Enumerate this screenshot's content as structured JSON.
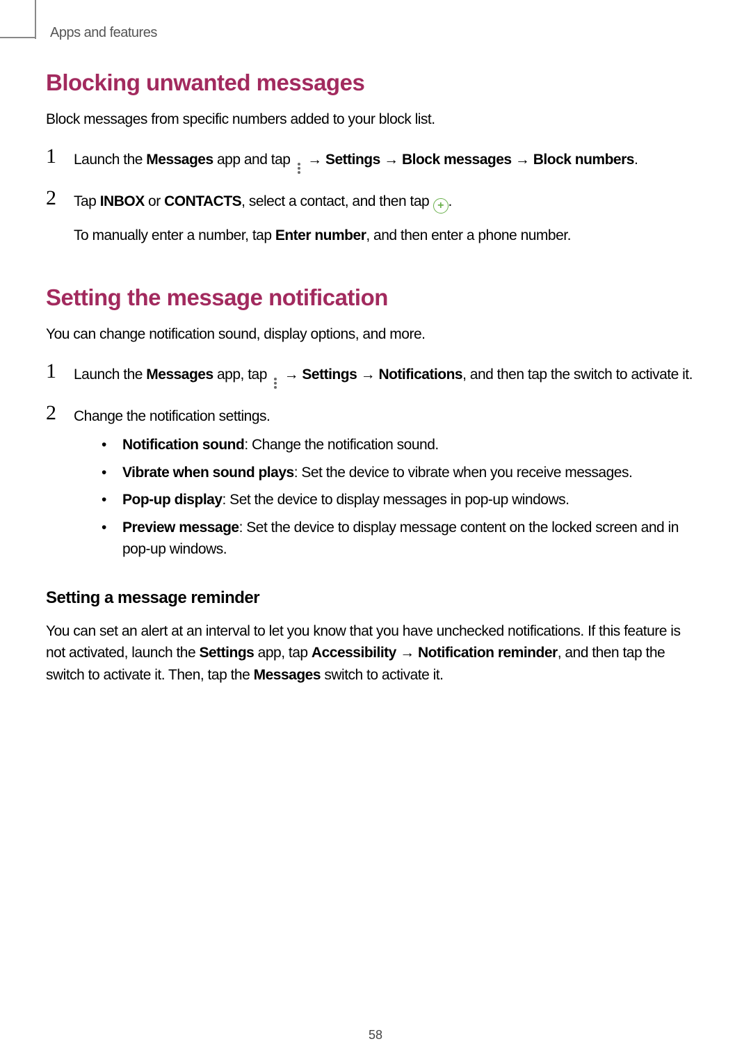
{
  "header": {
    "breadcrumb": "Apps and features"
  },
  "section1": {
    "title": "Blocking unwanted messages",
    "intro": "Block messages from specific numbers added to your block list.",
    "step1_prefix": "Launch the ",
    "step1_bold1": "Messages",
    "step1_mid1": " app and tap ",
    "step1_arrow1": " → ",
    "step1_bold2": "Settings",
    "step1_arrow2": " → ",
    "step1_bold3": "Block messages",
    "step1_arrow3": " → ",
    "step1_bold4": "Block numbers",
    "step1_suffix": ".",
    "step2_prefix": "Tap ",
    "step2_bold1": "INBOX",
    "step2_or": " or ",
    "step2_bold2": "CONTACTS",
    "step2_mid": ", select a contact, and then tap ",
    "step2_suffix": ".",
    "step2_sub_prefix": "To manually enter a number, tap ",
    "step2_sub_bold": "Enter number",
    "step2_sub_suffix": ", and then enter a phone number."
  },
  "section2": {
    "title": "Setting the message notification",
    "intro": "You can change notification sound, display options, and more.",
    "step1_prefix": "Launch the ",
    "step1_bold1": "Messages",
    "step1_mid1": " app, tap ",
    "step1_arrow1": " → ",
    "step1_bold2": "Settings",
    "step1_arrow2": " → ",
    "step1_bold3": "Notifications",
    "step1_suffix": ", and then tap the switch to activate it.",
    "step2": "Change the notification settings.",
    "bullets": {
      "b1_bold": "Notification sound",
      "b1_text": ": Change the notification sound.",
      "b2_bold": "Vibrate when sound plays",
      "b2_text": ": Set the device to vibrate when you receive messages.",
      "b3_bold": "Pop-up display",
      "b3_text": ": Set the device to display messages in pop-up windows.",
      "b4_bold": "Preview message",
      "b4_text": ": Set the device to display message content on the locked screen and in pop-up windows."
    },
    "subheading": "Setting a message reminder",
    "para_p1": "You can set an alert at an interval to let you know that you have unchecked notifications. If this feature is not activated, launch the ",
    "para_b1": "Settings",
    "para_p2": " app, tap ",
    "para_b2": "Accessibility",
    "para_arrow": " → ",
    "para_b3": "Notification reminder",
    "para_p3": ", and then tap the switch to activate it. Then, tap the ",
    "para_b4": "Messages",
    "para_p4": " switch to activate it."
  },
  "page_number": "58",
  "nums": {
    "one": "1",
    "two": "2"
  },
  "bullet_dot": "•",
  "plus": "+"
}
